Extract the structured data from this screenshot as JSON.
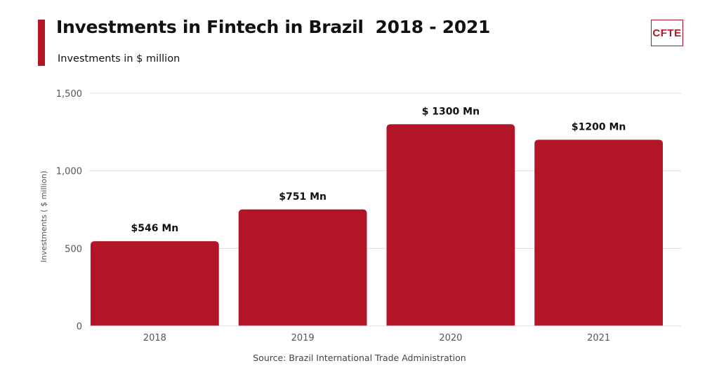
{
  "header": {
    "title": "Investments in Fintech in Brazil  2018 - 2021",
    "subtitle": "Investments in $ million",
    "logo_text": "CFTE",
    "accent_color": "#b31526"
  },
  "footer": {
    "source": "Source: Brazil International Trade Administration"
  },
  "chart_data": {
    "type": "bar",
    "categories": [
      "2018",
      "2019",
      "2020",
      "2021"
    ],
    "values": [
      546,
      751,
      1300,
      1200
    ],
    "data_labels": [
      "$546 Mn",
      "$751 Mn",
      "$ 1300 Mn",
      "$1200 Mn"
    ],
    "ylabel": "Investments ( $ million)",
    "xlabel": "",
    "ylim": [
      0,
      1500
    ],
    "yticks": [
      0,
      500,
      1000,
      1500
    ],
    "ytick_labels": [
      "0",
      "500",
      "1,000",
      "1,500"
    ],
    "grid": true,
    "bar_color": "#b31526"
  }
}
